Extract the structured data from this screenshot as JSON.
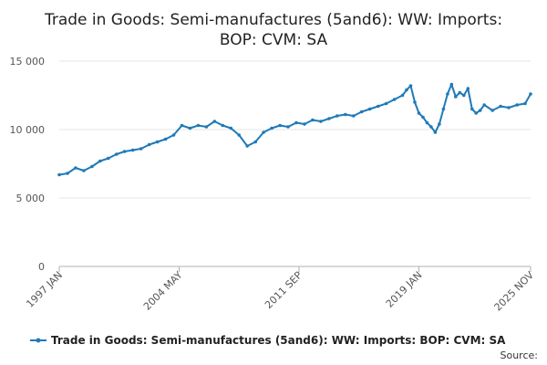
{
  "chart_data": {
    "type": "line",
    "title_lines": [
      "Trade in Goods: Semi-manufactures (5and6): WW: Imports:",
      "BOP: CVM: SA"
    ],
    "x_tick_labels": [
      "1997 JAN",
      "2004 MAY",
      "2011 SEP",
      "2019 JAN",
      "2025 NOV"
    ],
    "x_tick_dates": [
      1997.0,
      2004.333,
      2011.667,
      2019.0,
      2025.833
    ],
    "xlim": [
      1997.0,
      2025.833
    ],
    "y_tick_labels": [
      "0",
      "5 000",
      "10 000",
      "15 000"
    ],
    "y_ticks": [
      0,
      5000,
      10000,
      15000
    ],
    "ylim": [
      0,
      15000
    ],
    "grid": true,
    "legend_position": "bottom",
    "color": "#1f7ab8",
    "series": [
      {
        "name": "Trade in Goods: Semi-manufactures (5and6): WW: Imports: BOP: CVM: SA",
        "x": [
          1997.0,
          1997.5,
          1998.0,
          1998.5,
          1999.0,
          1999.5,
          2000.0,
          2000.5,
          2001.0,
          2001.5,
          2002.0,
          2002.5,
          2003.0,
          2003.5,
          2004.0,
          2004.5,
          2005.0,
          2005.5,
          2006.0,
          2006.5,
          2007.0,
          2007.5,
          2008.0,
          2008.5,
          2009.0,
          2009.5,
          2010.0,
          2010.5,
          2011.0,
          2011.5,
          2012.0,
          2012.5,
          2013.0,
          2013.5,
          2014.0,
          2014.5,
          2015.0,
          2015.5,
          2016.0,
          2016.5,
          2017.0,
          2017.5,
          2018.0,
          2018.25,
          2018.5,
          2018.75,
          2019.0,
          2019.25,
          2019.5,
          2019.75,
          2020.0,
          2020.25,
          2020.5,
          2020.75,
          2021.0,
          2021.25,
          2021.5,
          2021.75,
          2022.0,
          2022.25,
          2022.5,
          2022.75,
          2023.0,
          2023.5,
          2024.0,
          2024.5,
          2025.0,
          2025.5,
          2025.833
        ],
        "values": [
          6700,
          6800,
          7200,
          7000,
          7300,
          7700,
          7900,
          8200,
          8400,
          8500,
          8600,
          8900,
          9100,
          9300,
          9600,
          10300,
          10100,
          10300,
          10200,
          10600,
          10300,
          10100,
          9600,
          8800,
          9100,
          9800,
          10100,
          10300,
          10200,
          10500,
          10400,
          10700,
          10600,
          10800,
          11000,
          11100,
          11000,
          11300,
          11500,
          11700,
          11900,
          12200,
          12500,
          12900,
          13200,
          12000,
          11200,
          10900,
          10500,
          10200,
          9800,
          10400,
          11500,
          12600,
          13300,
          12400,
          12700,
          12500,
          13000,
          11500,
          11200,
          11400,
          11800,
          11400,
          11700,
          11600,
          11800,
          11900,
          12600
        ]
      }
    ],
    "source_label": "Source:"
  }
}
